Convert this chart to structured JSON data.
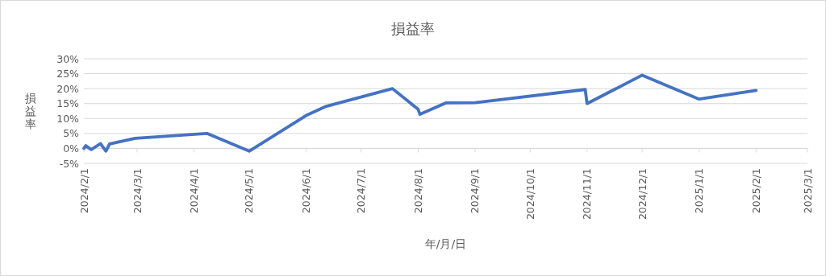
{
  "chart_data": {
    "type": "line",
    "title": "損益率",
    "xlabel": "年/月/日",
    "ylabel": "損益率",
    "x": [
      "2024-02-01",
      "2024-02-02",
      "2024-02-05",
      "2024-02-10",
      "2024-02-13",
      "2024-02-15",
      "2024-02-29",
      "2024-04-08",
      "2024-05-01",
      "2024-06-01",
      "2024-06-12",
      "2024-07-18",
      "2024-08-01",
      "2024-08-02",
      "2024-08-16",
      "2024-09-01",
      "2024-10-31",
      "2024-11-01",
      "2024-12-01",
      "2025-01-01",
      "2025-02-01"
    ],
    "series": [
      {
        "color": "#4472c4",
        "values": [
          0,
          0.9,
          -0.4,
          1.6,
          -0.9,
          1.5,
          3.4,
          5.0,
          -0.9,
          11.0,
          14.1,
          20.0,
          13.1,
          11.4,
          15.2,
          15.3,
          19.7,
          15.0,
          24.5,
          16.5,
          19.4
        ]
      }
    ],
    "xlim": [
      "2024-02-01",
      "2025-03-01"
    ],
    "xticks": [
      {
        "value": "2024-02-01",
        "label": "2024/2/1"
      },
      {
        "value": "2024-03-01",
        "label": "2024/3/1"
      },
      {
        "value": "2024-04-01",
        "label": "2024/4/1"
      },
      {
        "value": "2024-05-01",
        "label": "2024/5/1"
      },
      {
        "value": "2024-06-01",
        "label": "2024/6/1"
      },
      {
        "value": "2024-07-01",
        "label": "2024/7/1"
      },
      {
        "value": "2024-08-01",
        "label": "2024/8/1"
      },
      {
        "value": "2024-09-01",
        "label": "2024/9/1"
      },
      {
        "value": "2024-10-01",
        "label": "2024/10/1"
      },
      {
        "value": "2024-11-01",
        "label": "2024/11/1"
      },
      {
        "value": "2024-12-01",
        "label": "2024/12/1"
      },
      {
        "value": "2025-01-01",
        "label": "2025/1/1"
      },
      {
        "value": "2025-02-01",
        "label": "2025/2/1"
      },
      {
        "value": "2025-03-01",
        "label": "2025/3/1"
      }
    ],
    "ylim": [
      -5,
      30
    ],
    "yticks": [
      {
        "value": -5,
        "label": "-5%"
      },
      {
        "value": 0,
        "label": "0%"
      },
      {
        "value": 5,
        "label": "5%"
      },
      {
        "value": 10,
        "label": "10%"
      },
      {
        "value": 15,
        "label": "15%"
      },
      {
        "value": 20,
        "label": "20%"
      },
      {
        "value": 25,
        "label": "25%"
      },
      {
        "value": 30,
        "label": "30%"
      }
    ],
    "grid": "y",
    "marker": "none",
    "line_style": "solid"
  }
}
